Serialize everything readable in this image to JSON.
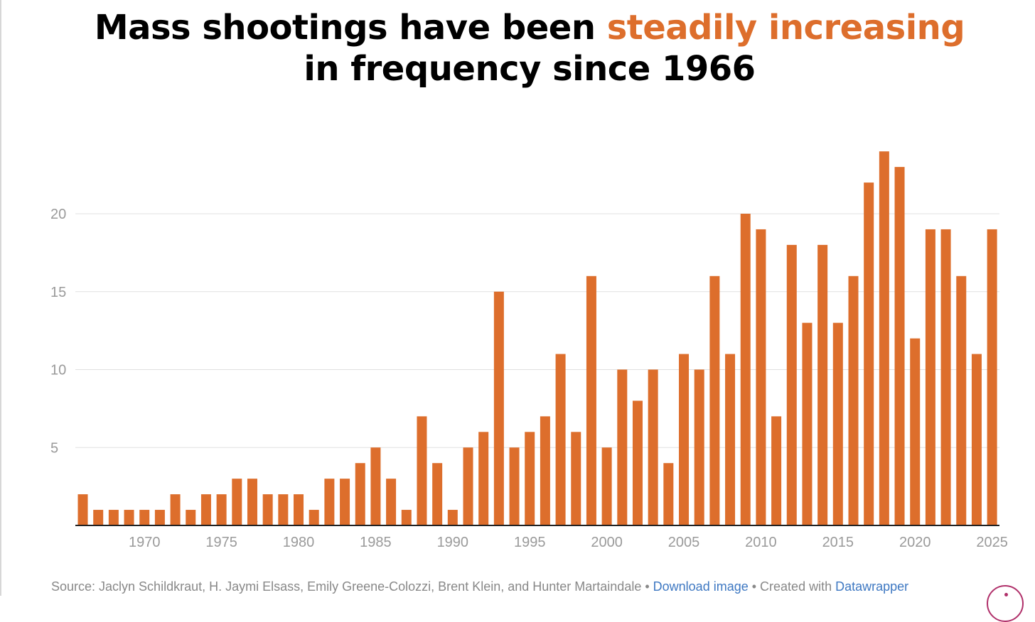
{
  "title": {
    "prefix": "Mass shootings have been ",
    "highlight": "steadily increasing",
    "suffix": " in frequency since 1966"
  },
  "colors": {
    "bar": "#dd6e2c",
    "highlight": "#dd6e2c",
    "link": "#3e78c2",
    "grid": "#e0e0e0",
    "axis": "#222222"
  },
  "chart_data": {
    "type": "bar",
    "title": "Mass shootings have been steadily increasing in frequency since 1966",
    "xlabel": "",
    "ylabel": "",
    "ylim": [
      0,
      25
    ],
    "yticks": [
      5,
      10,
      15,
      20
    ],
    "xticks": [
      1970,
      1975,
      1980,
      1985,
      1990,
      1995,
      2000,
      2005,
      2010,
      2015,
      2020,
      2025
    ],
    "grid": true,
    "categories": [
      1966,
      1967,
      1968,
      1969,
      1970,
      1971,
      1972,
      1973,
      1974,
      1975,
      1976,
      1977,
      1978,
      1979,
      1980,
      1981,
      1982,
      1983,
      1984,
      1985,
      1986,
      1987,
      1988,
      1989,
      1990,
      1991,
      1992,
      1993,
      1994,
      1995,
      1996,
      1997,
      1998,
      1999,
      2000,
      2001,
      2002,
      2003,
      2004,
      2005,
      2006,
      2007,
      2008,
      2009,
      2010,
      2011,
      2012,
      2013,
      2014,
      2015,
      2016,
      2017,
      2018,
      2019,
      2020,
      2021,
      2022,
      2023,
      2024,
      2025
    ],
    "values": [
      2,
      1,
      1,
      1,
      1,
      1,
      2,
      1,
      2,
      2,
      3,
      3,
      2,
      2,
      2,
      1,
      3,
      3,
      4,
      5,
      3,
      1,
      7,
      4,
      1,
      5,
      6,
      15,
      5,
      6,
      7,
      11,
      6,
      16,
      5,
      10,
      8,
      10,
      4,
      11,
      10,
      16,
      11,
      20,
      19,
      7,
      18,
      13,
      18,
      13,
      16,
      22,
      24,
      23,
      12,
      19,
      19,
      16,
      11,
      19
    ]
  },
  "footer": {
    "source": "Source: Jaclyn Schildkraut, H. Jaymi Elsass, Emily Greene-Colozzi, Brent Klein, and Hunter Martaindale",
    "sep1": " • ",
    "download_link": "Download image",
    "created_with": " • Created with ",
    "datawrapper_link": "Datawrapper"
  },
  "badge_icon": "datawrapper-badge-icon"
}
